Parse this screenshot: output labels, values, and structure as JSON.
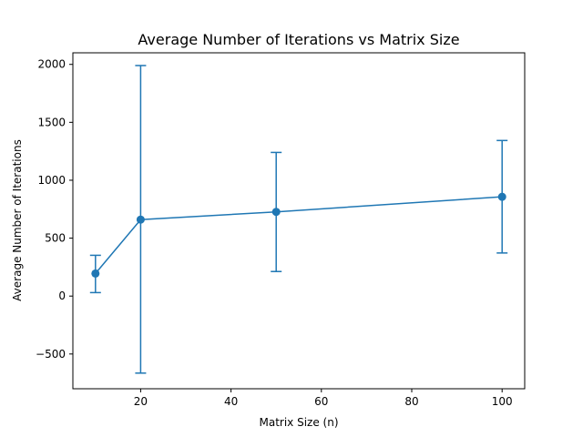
{
  "chart_data": {
    "type": "line",
    "title": "Average Number of Iterations vs Matrix Size",
    "xlabel": "Matrix Size (n)",
    "ylabel": "Average Number of Iterations",
    "xlim": [
      5,
      105
    ],
    "ylim": [
      -800,
      2100
    ],
    "x_ticks": [
      20,
      40,
      60,
      80,
      100
    ],
    "y_ticks": [
      -500,
      0,
      500,
      1000,
      1500,
      2000
    ],
    "x_tick_labels": [
      "20",
      "40",
      "60",
      "80",
      "100"
    ],
    "y_tick_labels": [
      "−500",
      "0",
      "500",
      "1000",
      "1500",
      "2000"
    ],
    "grid": false,
    "series": [
      {
        "color": "#1f77b4",
        "marker": "circle",
        "x": [
          10,
          20,
          50,
          100
        ],
        "y": [
          195,
          660,
          727,
          857
        ],
        "err_low": [
          30,
          -665,
          212,
          372
        ],
        "err_high": [
          352,
          1990,
          1240,
          1343
        ]
      }
    ]
  }
}
